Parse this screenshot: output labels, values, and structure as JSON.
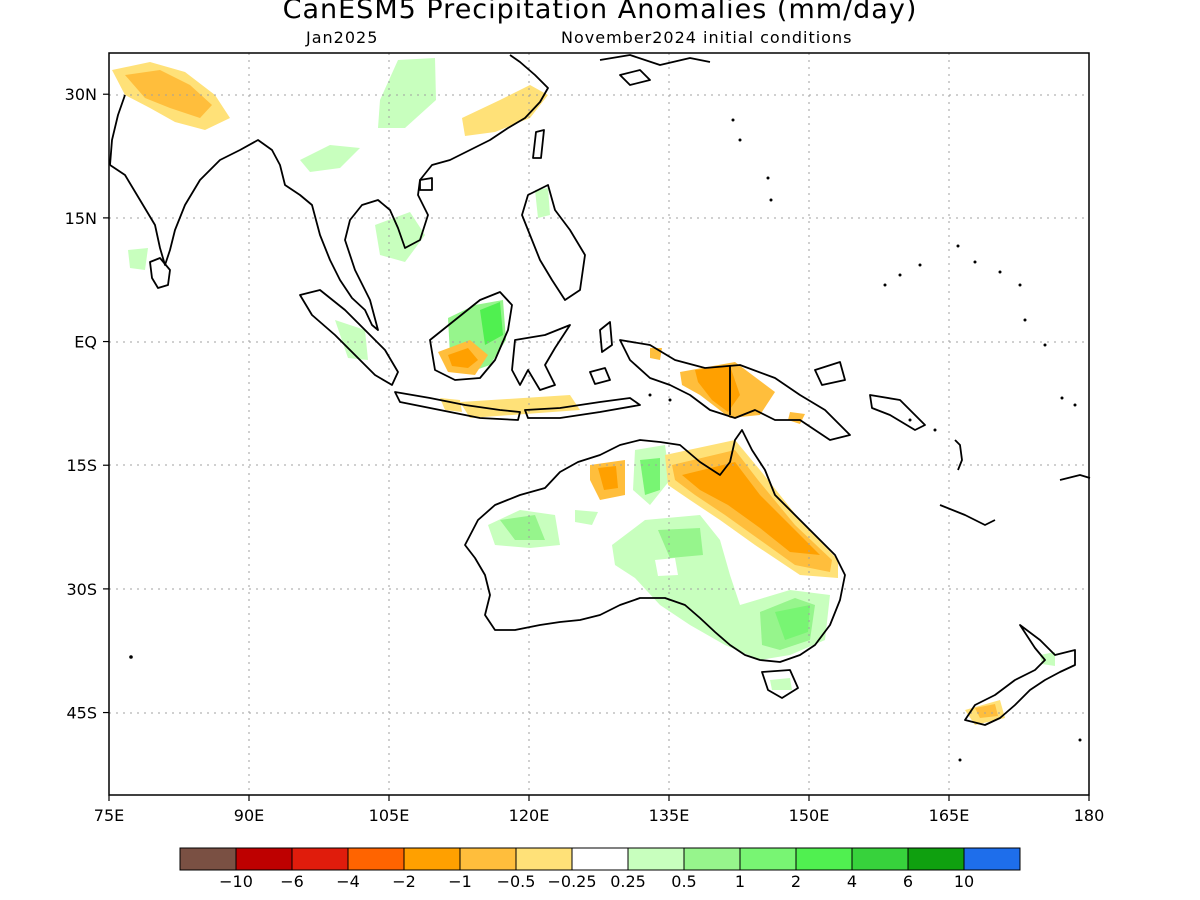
{
  "title": "CanESM5 Precipitation Anomalies (mm/day)",
  "subtitle_left": "Jan2025",
  "subtitle_right": "November2024 initial conditions",
  "map": {
    "lon_range": [
      75,
      180
    ],
    "lat_range": [
      -55,
      35
    ],
    "lon_ticks": [
      "75E",
      "90E",
      "105E",
      "120E",
      "135E",
      "150E",
      "165E",
      "180"
    ],
    "lat_ticks": [
      "30N",
      "15N",
      "EQ",
      "15S",
      "30S",
      "45S"
    ],
    "gridlines": "dotted"
  },
  "colorbar": {
    "colors": [
      "#7a5043",
      "#be0000",
      "#e01c0c",
      "#ff6400",
      "#ffa000",
      "#ffbe3c",
      "#ffe178",
      "#ffffff",
      "#c8ffbe",
      "#96f58c",
      "#78f573",
      "#50f050",
      "#37d23c",
      "#0fa00f",
      "#1e6eeb"
    ],
    "labels": [
      "−10",
      "−6",
      "−4",
      "−2",
      "−1",
      "−0.5",
      "−0.25",
      "0.25",
      "0.5",
      "1",
      "2",
      "4",
      "6",
      "10"
    ]
  }
}
